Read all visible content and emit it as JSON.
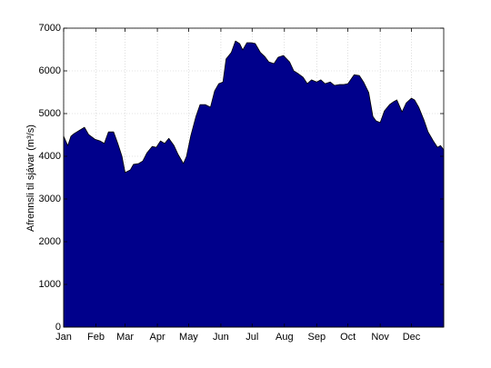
{
  "chart_data": {
    "type": "area",
    "ylabel": "Afrennsli til sjávar (m³/s)",
    "color": "#00008b",
    "edge_color": "#000000",
    "grid": true,
    "xlim": [
      1,
      366
    ],
    "ylim": [
      0,
      7000
    ],
    "yticks": [
      0,
      1000,
      2000,
      3000,
      4000,
      5000,
      6000,
      7000
    ],
    "xticks": [
      {
        "value": 1,
        "label": "Jan"
      },
      {
        "value": 32,
        "label": "Feb"
      },
      {
        "value": 60,
        "label": "Mar"
      },
      {
        "value": 91,
        "label": "Apr"
      },
      {
        "value": 121,
        "label": "May"
      },
      {
        "value": 152,
        "label": "Jun"
      },
      {
        "value": 182,
        "label": "Jul"
      },
      {
        "value": 213,
        "label": "Aug"
      },
      {
        "value": 244,
        "label": "Sep"
      },
      {
        "value": 274,
        "label": "Oct"
      },
      {
        "value": 305,
        "label": "Nov"
      },
      {
        "value": 335,
        "label": "Dec"
      }
    ],
    "x": [
      1,
      5,
      8,
      11,
      17,
      21,
      25,
      31,
      36,
      40,
      44,
      49,
      53,
      57,
      60,
      65,
      68,
      73,
      77,
      81,
      86,
      90,
      94,
      98,
      102,
      107,
      111,
      116,
      119,
      123,
      128,
      132,
      137,
      142,
      146,
      150,
      154,
      157,
      162,
      166,
      170,
      173,
      177,
      181,
      185,
      190,
      194,
      198,
      203,
      207,
      212,
      218,
      222,
      226,
      231,
      235,
      239,
      244,
      248,
      252,
      257,
      261,
      266,
      270,
      274,
      280,
      285,
      289,
      294,
      298,
      301,
      305,
      309,
      314,
      318,
      321,
      326,
      330,
      335,
      338,
      342,
      347,
      351,
      356,
      360,
      363,
      366
    ],
    "values": [
      4470,
      4250,
      4470,
      4530,
      4620,
      4680,
      4510,
      4400,
      4360,
      4300,
      4570,
      4570,
      4300,
      4000,
      3620,
      3680,
      3810,
      3830,
      3890,
      4080,
      4230,
      4210,
      4360,
      4300,
      4420,
      4250,
      4040,
      3830,
      4000,
      4470,
      4930,
      5210,
      5210,
      5150,
      5530,
      5700,
      5740,
      6280,
      6430,
      6700,
      6640,
      6490,
      6660,
      6660,
      6640,
      6430,
      6340,
      6210,
      6170,
      6320,
      6360,
      6210,
      6000,
      5940,
      5850,
      5700,
      5790,
      5740,
      5790,
      5700,
      5740,
      5660,
      5680,
      5680,
      5700,
      5910,
      5890,
      5740,
      5490,
      4930,
      4830,
      4790,
      5060,
      5210,
      5280,
      5320,
      5040,
      5250,
      5360,
      5320,
      5150,
      4850,
      4570,
      4360,
      4210,
      4250,
      4150
    ]
  }
}
